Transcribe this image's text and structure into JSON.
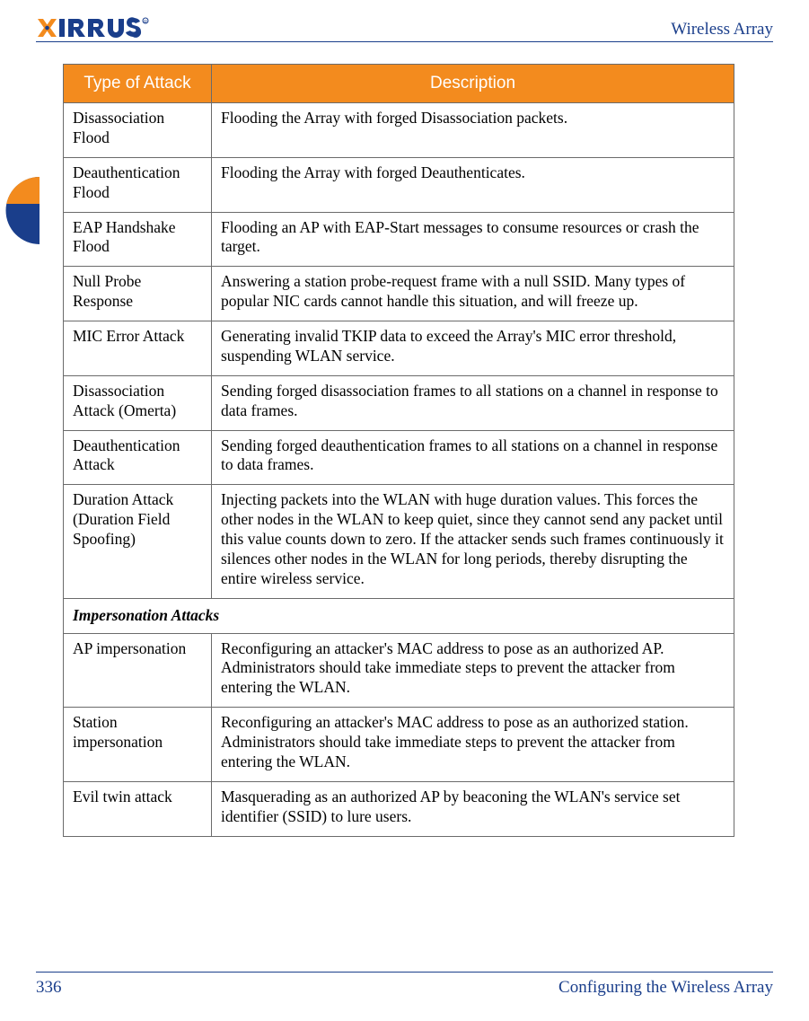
{
  "header": {
    "logo_text": "XIRRUS",
    "product_title": "Wireless Array"
  },
  "colors": {
    "accent_blue": "#1a3e8b",
    "header_orange": "#f38b1e",
    "tab_orange": "#f38b1e",
    "tab_blue": "#1a3e8b",
    "border_gray": "#6b6b6b",
    "logo_orange": "#f38b1e",
    "logo_blue": "#1a3e8b"
  },
  "table": {
    "headers": {
      "type": "Type of Attack",
      "description": "Description"
    },
    "rows": [
      {
        "kind": "data",
        "type": "Disassociation Flood",
        "description": "Flooding the Array with forged Disassociation packets."
      },
      {
        "kind": "data",
        "type": "Deauthentication Flood",
        "description": "Flooding the Array with forged Deauthenticates."
      },
      {
        "kind": "data",
        "type": "EAP Handshake Flood",
        "description": "Flooding an AP with EAP-Start messages to consume resources or crash the target."
      },
      {
        "kind": "data",
        "type": "Null Probe Response",
        "description": "Answering a station probe-request frame with a null SSID. Many types of popular NIC cards cannot handle this situation, and will freeze up."
      },
      {
        "kind": "data",
        "type": "MIC Error Attack",
        "description": "Generating invalid TKIP data to exceed the Array's MIC error threshold, suspending WLAN service."
      },
      {
        "kind": "data",
        "type": "Disassociation Attack (Omerta)",
        "description": "Sending forged disassociation frames to all stations on a channel in response to data frames."
      },
      {
        "kind": "data",
        "type": "Deauthentication Attack",
        "description": "Sending forged deauthentication frames to all stations on a channel in response to data frames."
      },
      {
        "kind": "data",
        "type": "Duration Attack (Duration Field Spoofing)",
        "description": "Injecting packets into the WLAN with huge duration values. This forces the other nodes in the WLAN to keep quiet, since they cannot send any packet until this value counts down to zero. If the attacker sends such frames continuously it silences other nodes in the WLAN for long periods, thereby disrupting the entire wireless service."
      },
      {
        "kind": "section",
        "label": "Impersonation Attacks"
      },
      {
        "kind": "data",
        "type": "AP impersonation",
        "description": "Reconfiguring an attacker's MAC address to pose as an authorized AP. Administrators should take immediate steps to prevent the attacker from entering the WLAN."
      },
      {
        "kind": "data",
        "type": "Station impersonation",
        "description": "Reconfiguring an attacker's MAC address to pose as an authorized station. Administrators should take immediate steps to prevent the attacker from entering the WLAN."
      },
      {
        "kind": "data",
        "type": "Evil twin attack",
        "description": "Masquerading as an authorized AP by beaconing the WLAN's service set identifier (SSID) to lure users."
      }
    ]
  },
  "footer": {
    "page_number": "336",
    "section_title": "Configuring the Wireless Array"
  }
}
